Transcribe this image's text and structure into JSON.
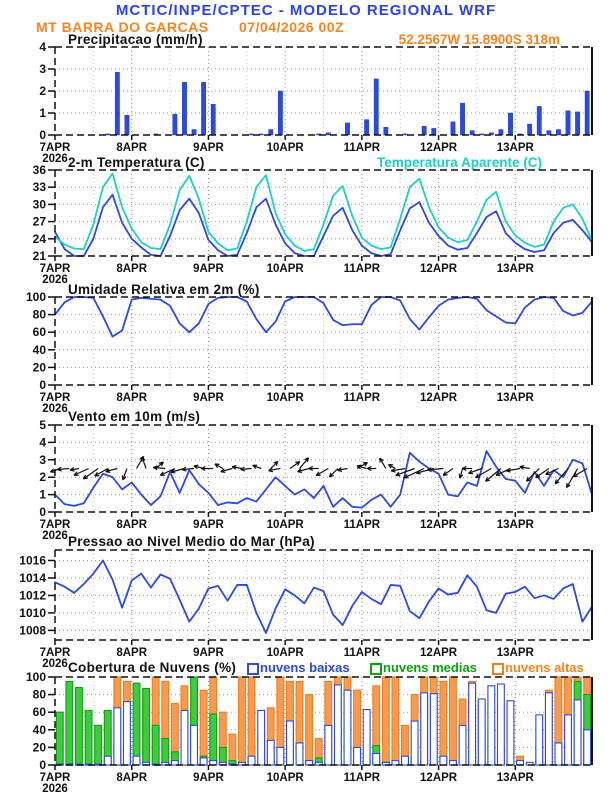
{
  "header": {
    "line1": "MCTIC/INPE/CPTEC - MODELO REGIONAL WRF",
    "station": "MT BARRA DO GARCAS",
    "run": "07/04/2026 00Z",
    "coords": "52.2567W 15.8900S 318m"
  },
  "colors": {
    "header_blue": "#2b43ee",
    "orange": "#f8841f",
    "line_blue": "#2c49e1",
    "cyan": "#1fcfc5",
    "green_fill": "#3fcb3f",
    "green_edge": "#0da30d",
    "orange_fill": "#f69c52",
    "orange_edge": "#ee7e1e",
    "black": "#111111",
    "grid": "#9a9a9a"
  },
  "x_axis": {
    "day_labels": [
      "7APR",
      "8APR",
      "9APR",
      "10APR",
      "11APR",
      "12APR",
      "13APR"
    ],
    "year": "2026",
    "hours_total": 168,
    "step_hours": 3
  },
  "chart_data": [
    {
      "type": "bar",
      "title": "Precipitacao (mm/h)",
      "ylabel": "mm/h",
      "ylim": [
        0,
        4
      ],
      "yticks": [
        0,
        1,
        2,
        3,
        4
      ],
      "bar_color": "line_blue",
      "values": [
        0,
        0,
        0,
        0,
        0,
        0.05,
        2.85,
        0.9,
        0,
        0,
        0.05,
        0,
        0.95,
        2.4,
        0.25,
        2.4,
        1.4,
        0,
        0,
        0,
        0.05,
        0.05,
        0.25,
        2.0,
        0,
        0,
        0,
        0.05,
        0.1,
        0,
        0.55,
        0,
        0.7,
        2.55,
        0.35,
        0,
        0.05,
        0,
        0.4,
        0.3,
        0,
        0.6,
        1.45,
        0.2,
        0.05,
        0.1,
        0.25,
        1.0,
        0.05,
        0.5,
        1.3,
        0.2,
        0.25,
        1.1,
        1.05,
        2.0
      ]
    },
    {
      "type": "line",
      "title": "2-m Temperatura (C)",
      "title2": "Temperatura Aparente (C)",
      "ylim": [
        21,
        36
      ],
      "yticks": [
        21,
        24,
        27,
        30,
        33,
        36
      ],
      "series": [
        {
          "name": "2-m Temperatura",
          "color": "line_blue",
          "values": [
            25.2,
            22.2,
            20.9,
            20.6,
            24.0,
            29.5,
            31.7,
            26.8,
            24.0,
            22.5,
            21.2,
            21.0,
            24.5,
            29.0,
            31.0,
            28.5,
            23.8,
            22.0,
            21.0,
            21.2,
            25.0,
            29.5,
            31.0,
            26.5,
            23.2,
            21.5,
            20.7,
            21.0,
            24.5,
            28.0,
            29.4,
            25.5,
            22.8,
            21.5,
            21.0,
            21.3,
            25.5,
            29.3,
            30.4,
            26.8,
            24.5,
            22.8,
            22.1,
            22.4,
            25.0,
            27.8,
            28.8,
            25.0,
            23.3,
            22.2,
            21.7,
            22.0,
            25.0,
            26.8,
            27.3,
            25.5,
            23.4
          ]
        },
        {
          "name": "Temperatura Aparente",
          "color": "cyan",
          "values": [
            24.4,
            23.0,
            22.3,
            22.2,
            26.5,
            33.0,
            35.4,
            29.5,
            25.8,
            23.4,
            22.4,
            22.2,
            26.5,
            32.5,
            35.0,
            31.0,
            25.2,
            23.2,
            22.0,
            22.3,
            27.0,
            33.0,
            35.1,
            28.5,
            24.8,
            22.8,
            21.9,
            22.2,
            26.5,
            31.5,
            33.2,
            28.0,
            24.2,
            22.8,
            22.2,
            22.5,
            27.5,
            33.0,
            34.5,
            29.5,
            26.0,
            24.2,
            23.4,
            23.8,
            27.0,
            30.8,
            32.2,
            27.0,
            24.6,
            23.3,
            22.6,
            23.0,
            27.0,
            29.4,
            30.0,
            27.5,
            23.6
          ]
        }
      ]
    },
    {
      "type": "line",
      "title": "Umidade Relativa em 2m (%)",
      "ylim": [
        0,
        100
      ],
      "yticks": [
        0,
        20,
        40,
        60,
        80,
        100
      ],
      "series": [
        {
          "name": "Umidade Relativa",
          "color": "line_blue",
          "values": [
            80,
            94,
            100,
            100,
            99,
            78,
            55,
            62,
            97,
            99,
            98,
            97,
            90,
            70,
            60,
            70,
            92,
            99,
            100,
            100,
            95,
            75,
            60,
            72,
            95,
            100,
            100,
            100,
            93,
            74,
            68,
            69,
            69,
            91,
            100,
            100,
            96,
            75,
            63,
            77,
            90,
            97,
            99,
            100,
            98,
            85,
            78,
            71,
            70,
            88,
            97,
            100,
            99,
            84,
            79,
            82,
            95
          ]
        }
      ]
    },
    {
      "type": "wind",
      "title": "Vento em 10m (m/s)",
      "ylim": [
        0,
        5
      ],
      "yticks": [
        0,
        1,
        2,
        3,
        4,
        5
      ],
      "barb_level": 2.5,
      "series": [
        {
          "name": "Velocidade do vento",
          "color": "line_blue",
          "values": [
            1.0,
            0.45,
            0.35,
            0.5,
            1.4,
            2.2,
            2.0,
            1.3,
            1.7,
            1.0,
            0.4,
            0.9,
            2.3,
            1.1,
            2.4,
            1.6,
            1.1,
            0.4,
            0.55,
            0.5,
            0.8,
            0.6,
            1.3,
            2.0,
            1.5,
            1.0,
            1.3,
            0.8,
            1.5,
            0.3,
            0.8,
            0.3,
            0.25,
            0.7,
            1.0,
            0.3,
            1.0,
            3.4,
            2.9,
            2.5,
            2.2,
            1.0,
            0.9,
            1.7,
            1.5,
            3.5,
            2.6,
            1.9,
            1.8,
            1.1,
            2.3,
            1.5,
            2.4,
            2.0,
            3.0,
            2.8,
            1.0
          ]
        }
      ],
      "arrows_deg_len": [
        [
          200,
          10
        ],
        [
          185,
          12
        ],
        [
          190,
          9
        ],
        [
          205,
          16
        ],
        [
          215,
          18
        ],
        [
          210,
          15
        ],
        [
          195,
          12
        ],
        [
          250,
          12
        ],
        [
          60,
          14
        ],
        [
          110,
          12
        ],
        [
          40,
          10
        ],
        [
          175,
          12
        ],
        [
          205,
          16
        ],
        [
          195,
          14
        ],
        [
          185,
          12
        ],
        [
          165,
          10
        ],
        [
          180,
          12
        ],
        [
          150,
          9
        ],
        [
          195,
          12
        ],
        [
          170,
          10
        ],
        [
          185,
          11
        ],
        [
          160,
          9
        ],
        [
          45,
          10
        ],
        [
          190,
          12
        ],
        [
          35,
          12
        ],
        [
          50,
          14
        ],
        [
          195,
          12
        ],
        [
          180,
          10
        ],
        [
          210,
          14
        ],
        [
          225,
          12
        ],
        [
          190,
          10
        ],
        [
          30,
          12
        ],
        [
          165,
          10
        ],
        [
          180,
          9
        ],
        [
          120,
          12
        ],
        [
          150,
          8
        ],
        [
          190,
          14
        ],
        [
          200,
          20
        ],
        [
          205,
          22
        ],
        [
          195,
          18
        ],
        [
          185,
          16
        ],
        [
          215,
          12
        ],
        [
          255,
          10
        ],
        [
          180,
          10
        ],
        [
          200,
          14
        ],
        [
          210,
          18
        ],
        [
          220,
          20
        ],
        [
          205,
          16
        ],
        [
          190,
          14
        ],
        [
          170,
          10
        ],
        [
          225,
          18
        ],
        [
          215,
          16
        ],
        [
          205,
          14
        ],
        [
          230,
          20
        ],
        [
          240,
          22
        ],
        [
          210,
          16
        ]
      ]
    },
    {
      "type": "line",
      "title": "Pressao ao Nivel Medio do Mar (hPa)",
      "ylim": [
        1006.9,
        1017.2
      ],
      "yticks": [
        1008,
        1010,
        1012,
        1014,
        1016
      ],
      "series": [
        {
          "name": "Pressao ao nivel medio do mar",
          "color": "line_blue",
          "values": [
            1013.5,
            1013.0,
            1012.3,
            1013.3,
            1014.5,
            1016.0,
            1013.8,
            1010.6,
            1013.7,
            1014.5,
            1012.9,
            1014.4,
            1013.9,
            1011.5,
            1009.0,
            1010.5,
            1012.8,
            1013.1,
            1011.4,
            1013.2,
            1013.2,
            1010.0,
            1007.7,
            1010.5,
            1012.7,
            1012.0,
            1011.1,
            1012.9,
            1012.5,
            1009.8,
            1008.6,
            1010.8,
            1012.4,
            1011.6,
            1011.0,
            1013.2,
            1013.1,
            1010.2,
            1009.4,
            1011.3,
            1012.8,
            1012.1,
            1012.3,
            1014.3,
            1013.0,
            1010.3,
            1010.0,
            1012.2,
            1012.4,
            1013.0,
            1011.7,
            1012.0,
            1011.6,
            1012.8,
            1013.3,
            1009.0,
            1010.7
          ]
        }
      ]
    },
    {
      "type": "bar3",
      "title": "Cobertura de Nuvens (%)",
      "ylim": [
        0,
        100
      ],
      "yticks": [
        0,
        20,
        40,
        60,
        80,
        100
      ],
      "legend": [
        "nuvens baixas",
        "nuvens medias",
        "nuvens altas"
      ],
      "series": [
        {
          "name": "nuvens altas",
          "fill": "orange_fill",
          "edge": "orange_edge",
          "values": [
            0,
            0,
            0,
            0,
            5,
            40,
            100,
            95,
            30,
            85,
            100,
            95,
            70,
            90,
            60,
            85,
            100,
            60,
            35,
            100,
            100,
            35,
            65,
            100,
            95,
            95,
            80,
            30,
            95,
            100,
            100,
            85,
            15,
            90,
            100,
            100,
            45,
            80,
            100,
            100,
            95,
            100,
            75,
            95,
            70,
            40,
            20,
            50,
            10,
            0,
            25,
            85,
            100,
            100,
            100,
            100
          ]
        },
        {
          "name": "nuvens medias",
          "fill": "green_fill",
          "edge": "green_edge",
          "values": [
            60,
            95,
            88,
            62,
            45,
            62,
            20,
            15,
            93,
            87,
            45,
            30,
            15,
            5,
            100,
            10,
            58,
            20,
            5,
            0,
            8,
            0,
            5,
            3,
            3,
            0,
            5,
            8,
            3,
            0,
            5,
            3,
            5,
            22,
            3,
            0,
            8,
            10,
            5,
            3,
            8,
            3,
            0,
            15,
            5,
            3,
            10,
            3,
            3,
            0,
            5,
            3,
            8,
            5,
            95,
            80
          ]
        },
        {
          "name": "nuvens baixas",
          "fill": "white",
          "edge": "line_blue",
          "values": [
            0,
            0,
            0,
            0,
            0,
            10,
            65,
            72,
            10,
            3,
            0,
            3,
            5,
            62,
            45,
            8,
            5,
            3,
            0,
            3,
            10,
            62,
            28,
            20,
            50,
            25,
            5,
            3,
            45,
            91,
            85,
            20,
            63,
            13,
            3,
            5,
            10,
            50,
            82,
            81,
            10,
            5,
            45,
            93,
            75,
            90,
            92,
            73,
            5,
            3,
            57,
            82,
            25,
            57,
            74,
            40
          ]
        }
      ]
    }
  ]
}
